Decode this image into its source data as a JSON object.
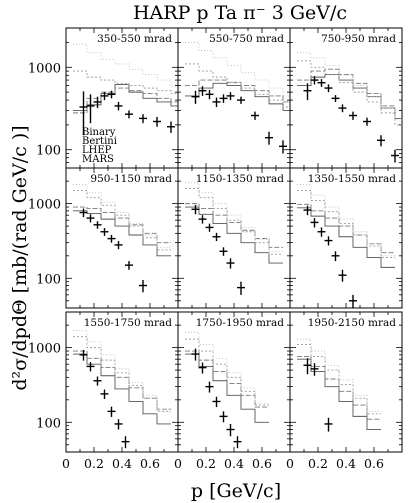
{
  "figure": {
    "title": "HARP p Ta π⁻ 3 GeV/c",
    "ylabel": "d²σ/dpdΘ [mb/(rad GeV/c )]",
    "xlabel": "p [GeV/c]",
    "x_ticks": [
      "0",
      "0.2",
      "0.4",
      "0.6"
    ],
    "y_ticks": [
      "100",
      "1000"
    ],
    "legend": [
      "Binary",
      "Bertini",
      "LHEP",
      "MARS"
    ],
    "colors": {
      "data": "#000000",
      "Binary": "#555555",
      "Bertini": "#777777",
      "LHEP": "#999999",
      "MARS": "#bbbbbb"
    }
  },
  "chart_data": [
    {
      "type": "line",
      "title": "350-550 mrad",
      "xlim": [
        0,
        0.8
      ],
      "ylim": [
        60,
        3000
      ],
      "yscale": "log",
      "data": {
        "x": [
          0.125,
          0.175,
          0.225,
          0.275,
          0.325,
          0.375,
          0.45,
          0.55,
          0.65,
          0.75
        ],
        "y": [
          330,
          340,
          380,
          450,
          470,
          340,
          270,
          240,
          220,
          190
        ],
        "yerr": [
          180,
          130,
          60,
          50,
          50,
          40,
          30,
          30,
          30,
          30
        ]
      },
      "series": [
        {
          "name": "Binary",
          "x": [
            0.1,
            0.2,
            0.3,
            0.4,
            0.5,
            0.6,
            0.7,
            0.8
          ],
          "y": [
            300,
            350,
            480,
            620,
            500,
            420,
            380,
            340
          ]
        },
        {
          "name": "Bertini",
          "x": [
            0.1,
            0.2,
            0.3,
            0.4,
            0.5,
            0.6,
            0.7,
            0.8
          ],
          "y": [
            280,
            420,
            500,
            560,
            520,
            480,
            420,
            380
          ]
        },
        {
          "name": "LHEP",
          "x": [
            0.1,
            0.2,
            0.3,
            0.4,
            0.5,
            0.6,
            0.7,
            0.8
          ],
          "y": [
            900,
            760,
            700,
            640,
            600,
            560,
            520,
            480
          ]
        },
        {
          "name": "MARS",
          "x": [
            0.1,
            0.2,
            0.3,
            0.4,
            0.5,
            0.6,
            0.7,
            0.8
          ],
          "y": [
            1900,
            1500,
            1250,
            1100,
            950,
            820,
            700,
            580
          ]
        }
      ]
    },
    {
      "type": "line",
      "title": "550-750 mrad",
      "xlim": [
        0,
        0.8
      ],
      "ylim": [
        60,
        3000
      ],
      "yscale": "log",
      "data": {
        "x": [
          0.125,
          0.175,
          0.225,
          0.275,
          0.325,
          0.375,
          0.45,
          0.55,
          0.65,
          0.75
        ],
        "y": [
          440,
          520,
          470,
          380,
          420,
          450,
          400,
          260,
          140,
          110
        ],
        "yerr": [
          80,
          70,
          60,
          50,
          50,
          50,
          40,
          30,
          25,
          20
        ]
      },
      "series": [
        {
          "name": "Binary",
          "x": [
            0.1,
            0.2,
            0.3,
            0.4,
            0.5,
            0.6,
            0.7,
            0.8
          ],
          "y": [
            450,
            560,
            640,
            600,
            520,
            440,
            360,
            300
          ]
        },
        {
          "name": "Bertini",
          "x": [
            0.1,
            0.2,
            0.3,
            0.4,
            0.5,
            0.6,
            0.7,
            0.8
          ],
          "y": [
            600,
            700,
            700,
            650,
            600,
            520,
            450,
            380
          ]
        },
        {
          "name": "LHEP",
          "x": [
            0.1,
            0.2,
            0.3,
            0.4,
            0.5,
            0.6,
            0.7,
            0.8
          ],
          "y": [
            1100,
            900,
            760,
            660,
            560,
            470,
            400,
            330
          ]
        },
        {
          "name": "MARS",
          "x": [
            0.1,
            0.2,
            0.3,
            0.4,
            0.5,
            0.6,
            0.7,
            0.8
          ],
          "y": [
            2000,
            1600,
            1300,
            1050,
            860,
            700,
            560,
            450
          ]
        }
      ]
    },
    {
      "type": "line",
      "title": "750-950 mrad",
      "xlim": [
        0,
        0.8
      ],
      "ylim": [
        60,
        3000
      ],
      "yscale": "log",
      "data": {
        "x": [
          0.125,
          0.175,
          0.225,
          0.275,
          0.325,
          0.375,
          0.45,
          0.55,
          0.65,
          0.75
        ],
        "y": [
          520,
          700,
          650,
          560,
          420,
          320,
          260,
          220,
          130,
          85
        ],
        "yerr": [
          120,
          80,
          70,
          60,
          40,
          35,
          30,
          25,
          20,
          15
        ]
      },
      "series": [
        {
          "name": "Binary",
          "x": [
            0.1,
            0.2,
            0.3,
            0.4,
            0.5,
            0.6,
            0.7,
            0.8
          ],
          "y": [
            600,
            760,
            820,
            700,
            560,
            440,
            320,
            240
          ]
        },
        {
          "name": "Bertini",
          "x": [
            0.1,
            0.2,
            0.3,
            0.4,
            0.5,
            0.6,
            0.7,
            0.8
          ],
          "y": [
            700,
            900,
            950,
            820,
            640,
            480,
            340,
            240
          ]
        },
        {
          "name": "LHEP",
          "x": [
            0.1,
            0.2,
            0.3,
            0.4,
            0.5,
            0.6,
            0.7,
            0.8
          ],
          "y": [
            1200,
            1000,
            820,
            650,
            500,
            380,
            280,
            200
          ]
        },
        {
          "name": "MARS",
          "x": [
            0.1,
            0.2,
            0.3,
            0.4,
            0.5,
            0.6,
            0.7,
            0.8
          ],
          "y": [
            1500,
            1300,
            1050,
            800,
            600,
            440,
            320,
            230
          ]
        }
      ]
    },
    {
      "type": "line",
      "title": "950-1150 mrad",
      "xlim": [
        0,
        0.8
      ],
      "ylim": [
        40,
        3000
      ],
      "yscale": "log",
      "data": {
        "x": [
          0.125,
          0.175,
          0.225,
          0.275,
          0.325,
          0.375,
          0.45,
          0.55
        ],
        "y": [
          760,
          640,
          520,
          420,
          340,
          280,
          150,
          80
        ],
        "yerr": [
          100,
          80,
          60,
          50,
          40,
          35,
          20,
          15
        ]
      },
      "series": [
        {
          "name": "Binary",
          "x": [
            0.1,
            0.2,
            0.3,
            0.4,
            0.5,
            0.6,
            0.7
          ],
          "y": [
            800,
            740,
            620,
            500,
            380,
            280,
            200
          ]
        },
        {
          "name": "Bertini",
          "x": [
            0.1,
            0.2,
            0.3,
            0.4,
            0.5,
            0.6,
            0.7
          ],
          "y": [
            900,
            860,
            760,
            640,
            520,
            400,
            300
          ]
        },
        {
          "name": "LHEP",
          "x": [
            0.1,
            0.2,
            0.3,
            0.4,
            0.5,
            0.6,
            0.7
          ],
          "y": [
            1500,
            1200,
            950,
            700,
            500,
            350,
            240
          ]
        },
        {
          "name": "MARS",
          "x": [
            0.1,
            0.2,
            0.3,
            0.4,
            0.5,
            0.6,
            0.7
          ],
          "y": [
            1800,
            1400,
            1050,
            760,
            540,
            380,
            260
          ]
        }
      ]
    },
    {
      "type": "line",
      "title": "1150-1350 mrad",
      "xlim": [
        0,
        0.8
      ],
      "ylim": [
        40,
        3000
      ],
      "yscale": "log",
      "data": {
        "x": [
          0.125,
          0.175,
          0.225,
          0.275,
          0.325,
          0.375,
          0.45
        ],
        "y": [
          840,
          620,
          480,
          360,
          230,
          160,
          75
        ],
        "yerr": [
          120,
          80,
          60,
          45,
          30,
          25,
          15
        ]
      },
      "series": [
        {
          "name": "Binary",
          "x": [
            0.1,
            0.2,
            0.3,
            0.4,
            0.5,
            0.6,
            0.7
          ],
          "y": [
            900,
            720,
            540,
            400,
            300,
            220,
            160
          ]
        },
        {
          "name": "Bertini",
          "x": [
            0.1,
            0.2,
            0.3,
            0.4,
            0.5,
            0.6,
            0.7
          ],
          "y": [
            1000,
            860,
            700,
            560,
            440,
            340,
            260
          ]
        },
        {
          "name": "LHEP",
          "x": [
            0.1,
            0.2,
            0.3,
            0.4,
            0.5,
            0.6,
            0.7
          ],
          "y": [
            1600,
            1200,
            860,
            600,
            420,
            300,
            210
          ]
        },
        {
          "name": "MARS",
          "x": [
            0.1,
            0.2,
            0.3,
            0.4,
            0.5,
            0.6,
            0.7
          ],
          "y": [
            1900,
            1400,
            1000,
            700,
            480,
            330,
            230
          ]
        }
      ]
    },
    {
      "type": "line",
      "title": "1350-1550 mrad",
      "xlim": [
        0,
        0.8
      ],
      "ylim": [
        40,
        3000
      ],
      "yscale": "log",
      "data": {
        "x": [
          0.125,
          0.175,
          0.225,
          0.275,
          0.325,
          0.375,
          0.45
        ],
        "y": [
          820,
          560,
          420,
          320,
          200,
          110,
          50
        ],
        "yerr": [
          120,
          80,
          60,
          45,
          30,
          20,
          10
        ]
      },
      "series": [
        {
          "name": "Binary",
          "x": [
            0.1,
            0.2,
            0.3,
            0.4,
            0.5,
            0.6,
            0.7
          ],
          "y": [
            880,
            680,
            500,
            360,
            260,
            190,
            140
          ]
        },
        {
          "name": "Bertini",
          "x": [
            0.1,
            0.2,
            0.3,
            0.4,
            0.5,
            0.6,
            0.7
          ],
          "y": [
            980,
            800,
            640,
            500,
            380,
            290,
            220
          ]
        },
        {
          "name": "LHEP",
          "x": [
            0.1,
            0.2,
            0.3,
            0.4,
            0.5,
            0.6,
            0.7
          ],
          "y": [
            1500,
            1100,
            780,
            540,
            380,
            270,
            190
          ]
        },
        {
          "name": "MARS",
          "x": [
            0.1,
            0.2,
            0.3,
            0.4,
            0.5,
            0.6,
            0.7
          ],
          "y": [
            1800,
            1300,
            900,
            620,
            420,
            290,
            200
          ]
        }
      ]
    },
    {
      "type": "line",
      "title": "1550-1750 mrad",
      "xlim": [
        0,
        0.8
      ],
      "ylim": [
        40,
        3000
      ],
      "yscale": "log",
      "data": {
        "x": [
          0.125,
          0.175,
          0.225,
          0.275,
          0.325,
          0.375,
          0.425
        ],
        "y": [
          800,
          560,
          360,
          240,
          140,
          95,
          55
        ],
        "yerr": [
          130,
          80,
          50,
          35,
          22,
          15,
          10
        ]
      },
      "series": [
        {
          "name": "Binary",
          "x": [
            0.1,
            0.2,
            0.3,
            0.4,
            0.5,
            0.6,
            0.7
          ],
          "y": [
            820,
            600,
            420,
            280,
            190,
            130,
            95
          ]
        },
        {
          "name": "Bertini",
          "x": [
            0.1,
            0.2,
            0.3,
            0.4,
            0.5,
            0.6,
            0.7
          ],
          "y": [
            900,
            720,
            540,
            400,
            290,
            210,
            150
          ]
        },
        {
          "name": "LHEP",
          "x": [
            0.1,
            0.2,
            0.3,
            0.4,
            0.5,
            0.6,
            0.7
          ],
          "y": [
            1400,
            1000,
            680,
            460,
            310,
            210,
            140
          ]
        },
        {
          "name": "MARS",
          "x": [
            0.1,
            0.2,
            0.3,
            0.4,
            0.5,
            0.6,
            0.7
          ],
          "y": [
            1700,
            1200,
            800,
            520,
            340,
            230,
            150
          ]
        }
      ]
    },
    {
      "type": "line",
      "title": "1750-1950 mrad",
      "xlim": [
        0,
        0.8
      ],
      "ylim": [
        40,
        3000
      ],
      "yscale": "log",
      "data": {
        "x": [
          0.125,
          0.175,
          0.225,
          0.275,
          0.325,
          0.375,
          0.425
        ],
        "y": [
          820,
          540,
          300,
          190,
          120,
          80,
          55
        ],
        "yerr": [
          150,
          90,
          50,
          30,
          20,
          15,
          10
        ]
      },
      "series": [
        {
          "name": "Binary",
          "x": [
            0.1,
            0.2,
            0.3,
            0.4,
            0.5,
            0.6
          ],
          "y": [
            820,
            560,
            360,
            230,
            150,
            100
          ]
        },
        {
          "name": "Bertini",
          "x": [
            0.1,
            0.2,
            0.3,
            0.4,
            0.5,
            0.6
          ],
          "y": [
            900,
            680,
            480,
            330,
            230,
            160
          ]
        },
        {
          "name": "LHEP",
          "x": [
            0.1,
            0.2,
            0.3,
            0.4,
            0.5,
            0.6
          ],
          "y": [
            1300,
            900,
            600,
            400,
            260,
            170
          ]
        },
        {
          "name": "MARS",
          "x": [
            0.1,
            0.2,
            0.3,
            0.4,
            0.5,
            0.6
          ],
          "y": [
            1600,
            1100,
            720,
            460,
            290,
            180
          ]
        }
      ]
    },
    {
      "type": "line",
      "title": "1950-2150 mrad",
      "xlim": [
        0,
        0.8
      ],
      "ylim": [
        40,
        3000
      ],
      "yscale": "log",
      "data": {
        "x": [
          0.125,
          0.175,
          0.275
        ],
        "y": [
          580,
          520,
          95
        ],
        "yerr": [
          140,
          100,
          20
        ]
      },
      "series": [
        {
          "name": "Binary",
          "x": [
            0.1,
            0.2,
            0.3,
            0.4,
            0.5,
            0.6
          ],
          "y": [
            700,
            480,
            300,
            190,
            120,
            80
          ]
        },
        {
          "name": "Bertini",
          "x": [
            0.1,
            0.2,
            0.3,
            0.4,
            0.5,
            0.6
          ],
          "y": [
            760,
            560,
            380,
            260,
            170,
            110
          ]
        },
        {
          "name": "LHEP",
          "x": [
            0.1,
            0.2,
            0.3,
            0.4,
            0.5,
            0.6
          ],
          "y": [
            1100,
            760,
            500,
            320,
            210,
            130
          ]
        },
        {
          "name": "MARS",
          "x": [
            0.1,
            0.2,
            0.3,
            0.4,
            0.5,
            0.6
          ],
          "y": [
            1300,
            900,
            580,
            370,
            230,
            140
          ]
        }
      ]
    }
  ]
}
